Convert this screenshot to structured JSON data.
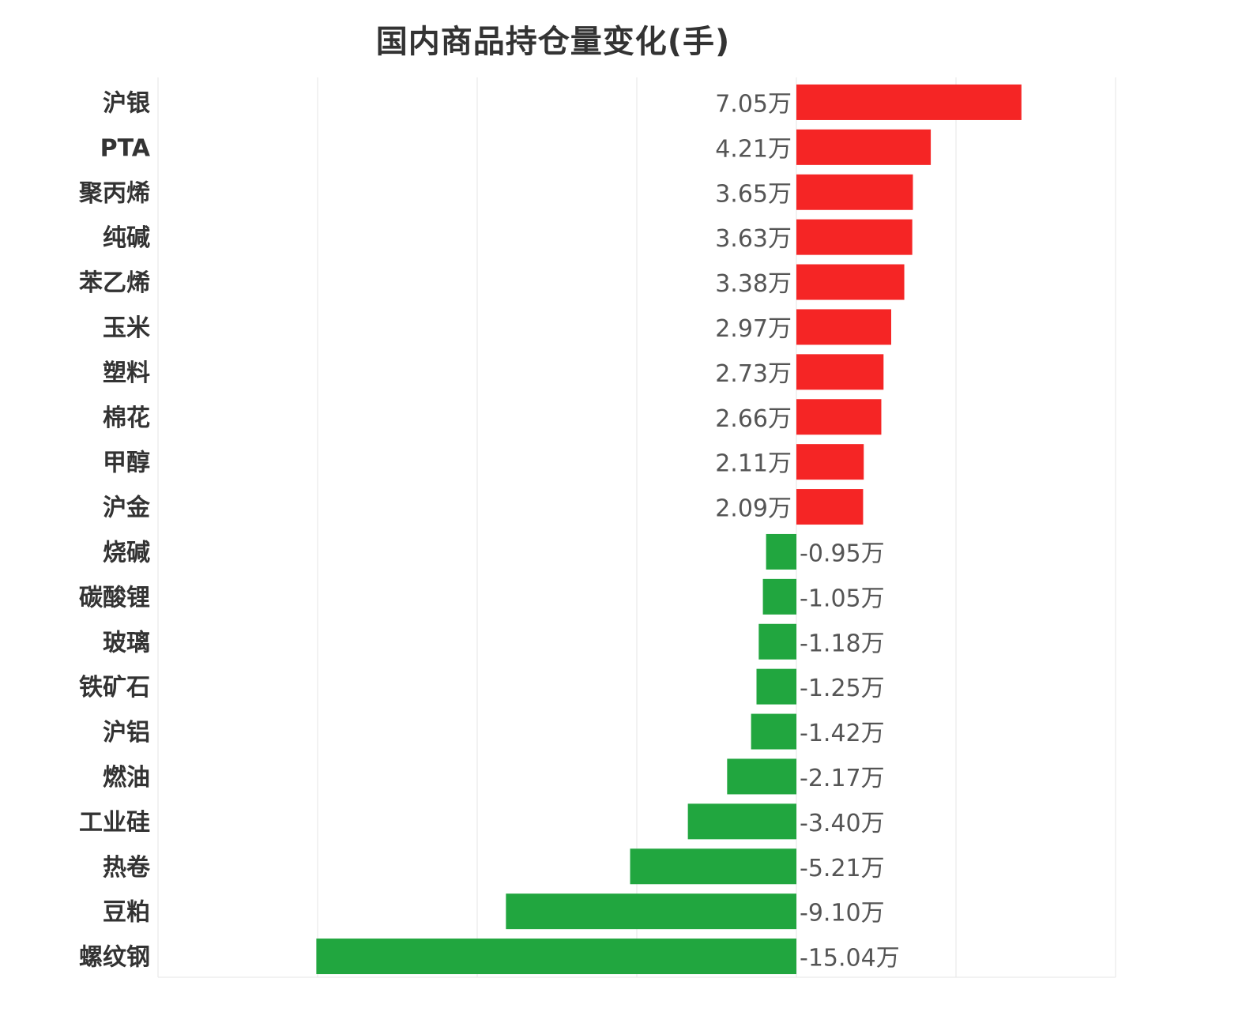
{
  "chart_data": {
    "type": "bar",
    "orientation": "horizontal",
    "title": "国内商品持仓量变化(手)",
    "unit_suffix": "万",
    "categories": [
      "沪银",
      "PTA",
      "聚丙烯",
      "纯碱",
      "苯乙烯",
      "玉米",
      "塑料",
      "棉花",
      "甲醇",
      "沪金",
      "烧碱",
      "碳酸锂",
      "玻璃",
      "铁矿石",
      "沪铝",
      "燃油",
      "工业硅",
      "热卷",
      "豆粕",
      "螺纹钢"
    ],
    "values": [
      7.05,
      4.21,
      3.65,
      3.63,
      3.38,
      2.97,
      2.73,
      2.66,
      2.11,
      2.09,
      -0.95,
      -1.05,
      -1.18,
      -1.25,
      -1.42,
      -2.17,
      -3.4,
      -5.21,
      -9.1,
      -15.04
    ],
    "value_labels": [
      "7.05万",
      "4.21万",
      "3.65万",
      "3.63万",
      "3.38万",
      "2.97万",
      "2.73万",
      "2.66万",
      "2.11万",
      "2.09万",
      "-0.95万",
      "-1.05万",
      "-1.18万",
      "-1.25万",
      "-1.42万",
      "-2.17万",
      "-3.40万",
      "-5.21万",
      "-9.10万",
      "-15.04万"
    ],
    "xlim": [
      -20,
      10
    ],
    "grid": true,
    "colors": {
      "positive": "#f52525",
      "negative": "#21a63f"
    }
  }
}
